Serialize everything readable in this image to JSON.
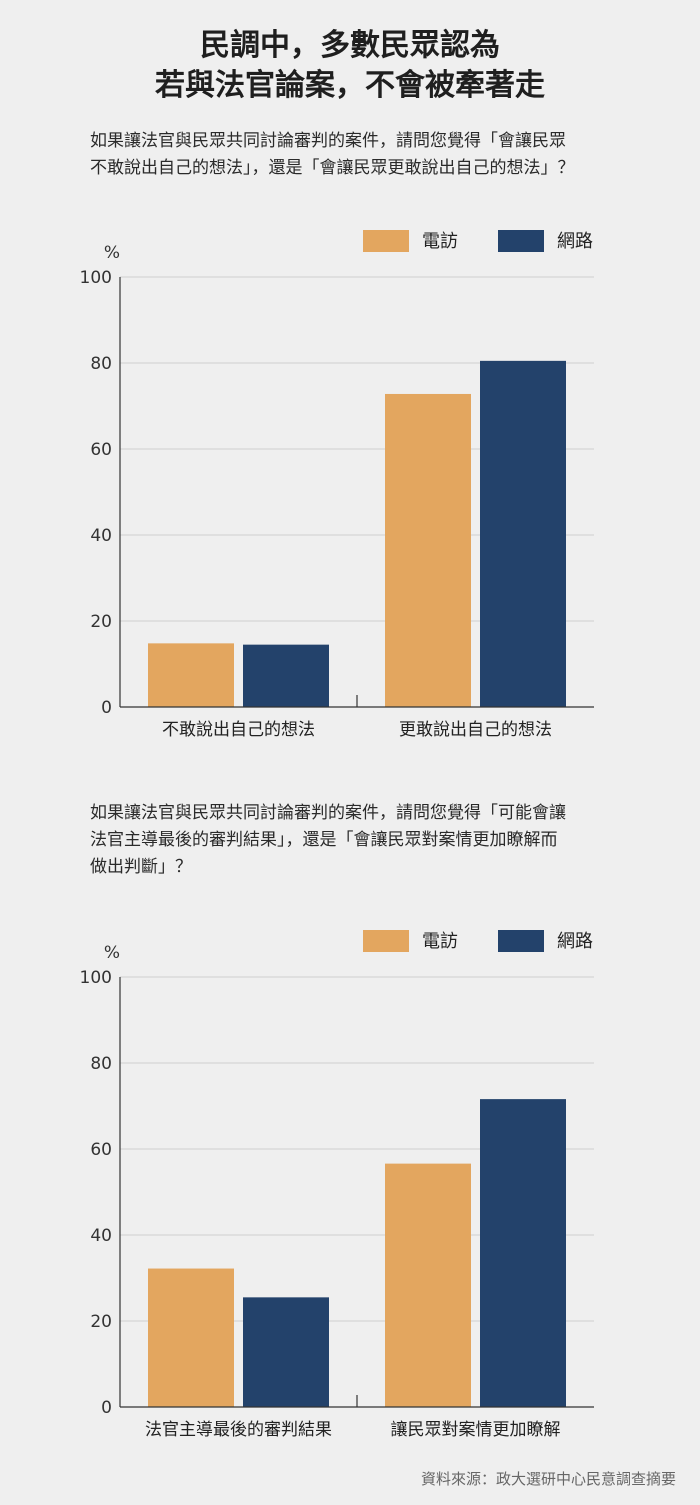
{
  "title": {
    "line1": "民調中，多數民眾認為",
    "line2": "若與法官論案，不會被牽著走"
  },
  "questions": [
    {
      "lines": [
        "如果讓法官與民眾共同討論審判的案件，請問您覺得「會讓民眾",
        "不敢說出自己的想法」，還是「會讓民眾更敢說出自己的想法」？"
      ]
    },
    {
      "lines": [
        "如果讓法官與民眾共同討論審判的案件，請問您覺得「可能會讓",
        "法官主導最後的審判結果」，還是「會讓民眾對案情更加瞭解而",
        "做出判斷」？"
      ]
    }
  ],
  "colors": {
    "phone": "#e3a65f",
    "web": "#23426b",
    "grid": "#cfcfcf",
    "axis": "#333333"
  },
  "chart_data": [
    {
      "type": "bar",
      "ylabel": "%",
      "ylim": [
        0,
        100
      ],
      "yticks": [
        0,
        20,
        40,
        60,
        80,
        100
      ],
      "grid": true,
      "legend_position": "top-right",
      "categories": [
        "不敢說出自己的想法",
        "更敢說出自己的想法"
      ],
      "series": [
        {
          "name": "電訪",
          "values": [
            14.8,
            72.8
          ]
        },
        {
          "name": "網路",
          "values": [
            14.5,
            80.5
          ]
        }
      ]
    },
    {
      "type": "bar",
      "ylabel": "%",
      "ylim": [
        0,
        100
      ],
      "yticks": [
        0,
        20,
        40,
        60,
        80,
        100
      ],
      "grid": true,
      "legend_position": "top-right",
      "categories": [
        "法官主導最後的審判結果",
        "讓民眾對案情更加瞭解"
      ],
      "series": [
        {
          "name": "電訪",
          "values": [
            32.2,
            56.6
          ]
        },
        {
          "name": "網路",
          "values": [
            25.5,
            71.6
          ]
        }
      ]
    }
  ],
  "source": "資料來源：政大選研中心民意調查摘要"
}
